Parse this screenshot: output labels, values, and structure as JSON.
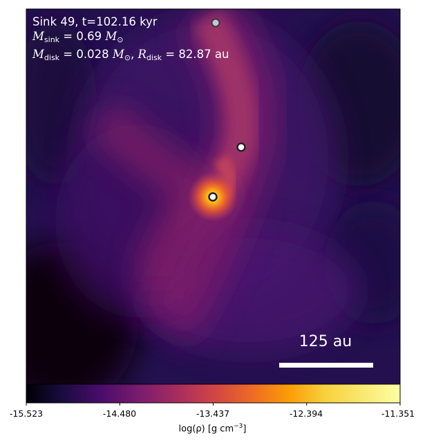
{
  "annotation": {
    "line1": "Sink 49, t=102.16 kyr",
    "m_sink_symbol": "M",
    "m_sink_sub": "sink",
    "m_sink_value": " = 0.69 ",
    "m_sink_unit": "M",
    "m_sink_unit_sub": "⊙",
    "m_disk_symbol": "M",
    "m_disk_sub": "disk",
    "m_disk_value": " = 0.028 ",
    "m_disk_unit": "M",
    "m_disk_unit_sub": "⊙",
    "sep": ", ",
    "r_disk_symbol": "R",
    "r_disk_sub": "disk",
    "r_disk_value": " = 82.87 au"
  },
  "scale_bar": {
    "label": "125 au"
  },
  "colorbar": {
    "colormap": "inferno",
    "ticks": [
      "-15.523",
      "-14.480",
      "-13.437",
      "-12.394",
      "-11.351"
    ],
    "label_prefix": "log(ρ) [g cm",
    "label_exp": "−3",
    "label_suffix": "]"
  },
  "sinks": [
    {
      "name": "sink-top",
      "style": "faint"
    },
    {
      "name": "sink-middle",
      "style": "normal"
    },
    {
      "name": "sink-central",
      "style": "bright"
    }
  ],
  "colors": {
    "background_dark": "#1a0a3c",
    "filament": "#a23a6e",
    "core": "#fcb014",
    "marker_edge": "#222222",
    "marker_fill": "#ffffff"
  }
}
